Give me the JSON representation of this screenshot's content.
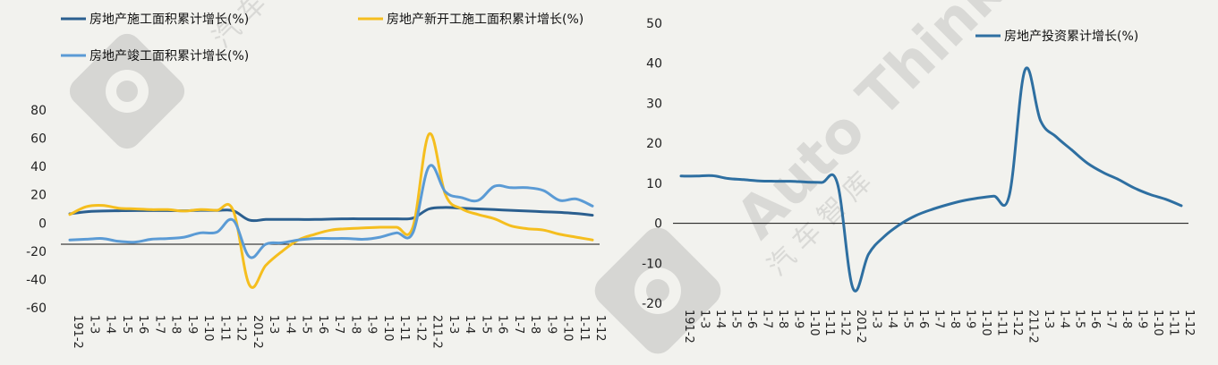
{
  "watermark": {
    "text": "Auto Thinker",
    "cn": "汽 车 智 库",
    "cn2": "汽 车"
  },
  "chart_data": [
    {
      "type": "line",
      "categories": [
        "191-2",
        "1-3",
        "1-4",
        "1-5",
        "1-6",
        "1-7",
        "1-8",
        "1-9",
        "1-10",
        "1-11",
        "1-12",
        "201-2",
        "1-3",
        "1-4",
        "1-5",
        "1-6",
        "1-7",
        "1-8",
        "1-9",
        "1-10",
        "1-11",
        "1-12",
        "211-2",
        "1-3",
        "1-4",
        "1-5",
        "1-6",
        "1-7",
        "1-8",
        "1-9",
        "1-10",
        "1-11",
        "1-12"
      ],
      "ylim": [
        -60,
        80
      ],
      "yticks": [
        "80",
        "60",
        "40",
        "20",
        "0",
        "-20",
        "-40",
        "-60"
      ],
      "legend": "top",
      "series": [
        {
          "name": "房地产施工面积累计增长(%)",
          "color": "#2b5f8f",
          "values": [
            6.5,
            8.0,
            8.5,
            8.7,
            8.8,
            8.8,
            8.8,
            8.7,
            9.0,
            8.9,
            8.7,
            2.0,
            2.5,
            2.5,
            2.5,
            2.5,
            2.8,
            3.0,
            3.0,
            3.0,
            3.0,
            3.5,
            10.0,
            11.0,
            10.5,
            10.0,
            9.5,
            9.0,
            8.5,
            8.0,
            7.5,
            6.8,
            5.5
          ]
        },
        {
          "name": "房地产新开工施工面积累计增长(%)",
          "color": "#f5be1e",
          "values": [
            6.0,
            11.5,
            12.5,
            10.5,
            10.0,
            9.5,
            9.5,
            8.5,
            9.5,
            9.0,
            9.0,
            -44.0,
            -30.0,
            -20.0,
            -12.0,
            -8.0,
            -5.0,
            -4.0,
            -3.5,
            -3.0,
            -3.0,
            -3.0,
            63.0,
            20.0,
            10.0,
            6.0,
            3.0,
            -2.0,
            -4.0,
            -5.0,
            -8.0,
            -10.0,
            -12.0
          ]
        },
        {
          "name": "房地产竣工面积累计增长(%)",
          "color": "#5b9bd5",
          "values": [
            -12.0,
            -11.5,
            -11.0,
            -13.0,
            -13.5,
            -11.5,
            -11.0,
            -10.0,
            -7.0,
            -6.5,
            2.0,
            -24.0,
            -15.0,
            -14.0,
            -12.0,
            -11.0,
            -11.0,
            -11.0,
            -11.5,
            -10.0,
            -7.0,
            -7.0,
            40.0,
            22.0,
            18.0,
            16.0,
            26.0,
            25.0,
            25.0,
            23.0,
            16.0,
            17.0,
            12.0
          ]
        }
      ]
    },
    {
      "type": "line",
      "categories": [
        "191-2",
        "1-3",
        "1-4",
        "1-5",
        "1-6",
        "1-7",
        "1-8",
        "1-9",
        "1-10",
        "1-11",
        "1-12",
        "201-2",
        "1-3",
        "1-4",
        "1-5",
        "1-6",
        "1-7",
        "1-8",
        "1-9",
        "1-10",
        "1-11",
        "1-12",
        "211-2",
        "1-3",
        "1-4",
        "1-5",
        "1-6",
        "1-7",
        "1-8",
        "1-9",
        "1-10",
        "1-11",
        "1-12"
      ],
      "ylim": [
        -20,
        50
      ],
      "yticks": [
        "50",
        "40",
        "30",
        "20",
        "10",
        "0",
        "-10",
        "-20"
      ],
      "legend": "top-right",
      "series": [
        {
          "name": "房地产投资累计增长(%)",
          "color": "#2e6fa1",
          "values": [
            11.8,
            11.8,
            11.9,
            11.2,
            10.9,
            10.6,
            10.5,
            10.5,
            10.3,
            10.2,
            10.0,
            -16.3,
            -7.7,
            -3.3,
            -0.3,
            1.9,
            3.4,
            4.6,
            5.6,
            6.3,
            6.8,
            7.0,
            38.3,
            25.6,
            21.6,
            18.3,
            15.0,
            12.7,
            10.9,
            8.8,
            7.2,
            6.0,
            4.4
          ]
        }
      ]
    }
  ]
}
